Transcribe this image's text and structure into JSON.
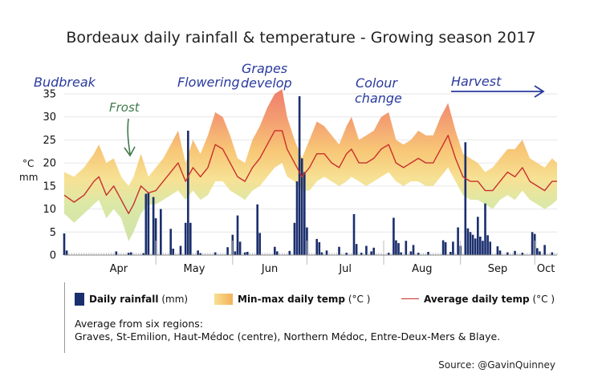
{
  "chart_data": {
    "type": "bar+band+line",
    "title": "Bordeaux daily rainfall & temperature - Growing season 2017",
    "y_unit_top": "°C",
    "y_unit_bottom": "mm",
    "ylim": [
      0,
      35
    ],
    "y_ticks": [
      0,
      5,
      10,
      15,
      20,
      25,
      30,
      35
    ],
    "x_range_days": [
      "2017-03-25",
      "2017-10-10"
    ],
    "month_labels": [
      "Apr",
      "May",
      "Jun",
      "Jul",
      "Aug",
      "Sep",
      "Oct"
    ],
    "month_boundaries": [
      "2017-05-01",
      "2017-06-01",
      "2017-07-01",
      "2017-08-01",
      "2017-09-01",
      "2017-10-01"
    ],
    "series": [
      {
        "name": "Daily rainfall",
        "unit": "(mm)",
        "type": "bar",
        "color": "#1b2f6e"
      },
      {
        "name": "Min-max daily temp",
        "unit": "(°C )",
        "type": "band",
        "color": "#f5b15a"
      },
      {
        "name": "Average daily temp",
        "unit": "(°C )",
        "type": "line",
        "color": "#c9302c"
      }
    ],
    "rainfall_mm": [
      {
        "date": "2017-03-25",
        "v": 4.7
      },
      {
        "date": "2017-03-26",
        "v": 1.0
      },
      {
        "date": "2017-04-15",
        "v": 0.8
      },
      {
        "date": "2017-04-20",
        "v": 0.5
      },
      {
        "date": "2017-04-21",
        "v": 0.6
      },
      {
        "date": "2017-04-26",
        "v": 0.4
      },
      {
        "date": "2017-04-27",
        "v": 13.3
      },
      {
        "date": "2017-04-28",
        "v": 13.5
      },
      {
        "date": "2017-04-30",
        "v": 12.6
      },
      {
        "date": "2017-05-01",
        "v": 8.0
      },
      {
        "date": "2017-05-03",
        "v": 10.0
      },
      {
        "date": "2017-05-07",
        "v": 5.7
      },
      {
        "date": "2017-05-08",
        "v": 1.4
      },
      {
        "date": "2017-05-11",
        "v": 2.0
      },
      {
        "date": "2017-05-13",
        "v": 7.0
      },
      {
        "date": "2017-05-14",
        "v": 27.0
      },
      {
        "date": "2017-05-15",
        "v": 7.0
      },
      {
        "date": "2017-05-18",
        "v": 1.0
      },
      {
        "date": "2017-05-19",
        "v": 0.4
      },
      {
        "date": "2017-05-25",
        "v": 0.6
      },
      {
        "date": "2017-05-30",
        "v": 1.7
      },
      {
        "date": "2017-06-01",
        "v": 4.4
      },
      {
        "date": "2017-06-02",
        "v": 0.8
      },
      {
        "date": "2017-06-03",
        "v": 8.6
      },
      {
        "date": "2017-06-04",
        "v": 2.9
      },
      {
        "date": "2017-06-06",
        "v": 0.6
      },
      {
        "date": "2017-06-07",
        "v": 0.7
      },
      {
        "date": "2017-06-11",
        "v": 11.0
      },
      {
        "date": "2017-06-12",
        "v": 4.8
      },
      {
        "date": "2017-06-18",
        "v": 1.8
      },
      {
        "date": "2017-06-19",
        "v": 0.8
      },
      {
        "date": "2017-06-24",
        "v": 0.9
      },
      {
        "date": "2017-06-26",
        "v": 7.0
      },
      {
        "date": "2017-06-27",
        "v": 16.0
      },
      {
        "date": "2017-06-28",
        "v": 34.5
      },
      {
        "date": "2017-06-29",
        "v": 21.0
      },
      {
        "date": "2017-06-30",
        "v": 18.0
      },
      {
        "date": "2017-07-01",
        "v": 6.0
      },
      {
        "date": "2017-07-05",
        "v": 3.5
      },
      {
        "date": "2017-07-06",
        "v": 2.8
      },
      {
        "date": "2017-07-07",
        "v": 0.6
      },
      {
        "date": "2017-07-09",
        "v": 1.0
      },
      {
        "date": "2017-07-14",
        "v": 1.8
      },
      {
        "date": "2017-07-17",
        "v": 0.5
      },
      {
        "date": "2017-07-20",
        "v": 8.9
      },
      {
        "date": "2017-07-21",
        "v": 2.4
      },
      {
        "date": "2017-07-23",
        "v": 0.5
      },
      {
        "date": "2017-07-25",
        "v": 2.0
      },
      {
        "date": "2017-07-27",
        "v": 0.8
      },
      {
        "date": "2017-07-28",
        "v": 1.6
      },
      {
        "date": "2017-08-03",
        "v": 0.5
      },
      {
        "date": "2017-08-05",
        "v": 8.1
      },
      {
        "date": "2017-08-06",
        "v": 3.2
      },
      {
        "date": "2017-08-07",
        "v": 2.6
      },
      {
        "date": "2017-08-08",
        "v": 0.6
      },
      {
        "date": "2017-08-10",
        "v": 3.1
      },
      {
        "date": "2017-08-12",
        "v": 0.8
      },
      {
        "date": "2017-08-13",
        "v": 2.2
      },
      {
        "date": "2017-08-15",
        "v": 0.5
      },
      {
        "date": "2017-08-19",
        "v": 0.7
      },
      {
        "date": "2017-08-25",
        "v": 3.2
      },
      {
        "date": "2017-08-26",
        "v": 2.8
      },
      {
        "date": "2017-08-28",
        "v": 0.7
      },
      {
        "date": "2017-08-29",
        "v": 2.9
      },
      {
        "date": "2017-08-31",
        "v": 6.0
      },
      {
        "date": "2017-09-01",
        "v": 2.0
      },
      {
        "date": "2017-09-03",
        "v": 24.5
      },
      {
        "date": "2017-09-04",
        "v": 5.8
      },
      {
        "date": "2017-09-05",
        "v": 5.0
      },
      {
        "date": "2017-09-06",
        "v": 4.4
      },
      {
        "date": "2017-09-07",
        "v": 3.6
      },
      {
        "date": "2017-09-08",
        "v": 8.3
      },
      {
        "date": "2017-09-09",
        "v": 4.0
      },
      {
        "date": "2017-09-10",
        "v": 3.1
      },
      {
        "date": "2017-09-11",
        "v": 11.2
      },
      {
        "date": "2017-09-12",
        "v": 4.3
      },
      {
        "date": "2017-09-13",
        "v": 2.9
      },
      {
        "date": "2017-09-16",
        "v": 1.9
      },
      {
        "date": "2017-09-17",
        "v": 1.0
      },
      {
        "date": "2017-09-20",
        "v": 0.6
      },
      {
        "date": "2017-09-23",
        "v": 0.9
      },
      {
        "date": "2017-09-26",
        "v": 0.5
      },
      {
        "date": "2017-09-30",
        "v": 5.0
      },
      {
        "date": "2017-10-01",
        "v": 4.6
      },
      {
        "date": "2017-10-02",
        "v": 1.5
      },
      {
        "date": "2017-10-03",
        "v": 0.8
      },
      {
        "date": "2017-10-05",
        "v": 2.2
      },
      {
        "date": "2017-10-08",
        "v": 0.6
      }
    ],
    "temp_daily": [
      {
        "date": "2017-03-25",
        "min": 9,
        "avg": 13,
        "max": 18
      },
      {
        "date": "2017-03-29",
        "min": 7,
        "avg": 11.5,
        "max": 17
      },
      {
        "date": "2017-04-02",
        "min": 9,
        "avg": 13,
        "max": 19
      },
      {
        "date": "2017-04-06",
        "min": 11,
        "avg": 16,
        "max": 22
      },
      {
        "date": "2017-04-08",
        "min": 12,
        "avg": 17,
        "max": 24
      },
      {
        "date": "2017-04-11",
        "min": 8,
        "avg": 13,
        "max": 20
      },
      {
        "date": "2017-04-14",
        "min": 10,
        "avg": 15,
        "max": 21
      },
      {
        "date": "2017-04-17",
        "min": 8,
        "avg": 12,
        "max": 17
      },
      {
        "date": "2017-04-20",
        "min": 3,
        "avg": 9,
        "max": 15
      },
      {
        "date": "2017-04-22",
        "min": 5,
        "avg": 11,
        "max": 17
      },
      {
        "date": "2017-04-25",
        "min": 9,
        "avg": 15,
        "max": 22
      },
      {
        "date": "2017-04-28",
        "min": 11,
        "avg": 13.5,
        "max": 17
      },
      {
        "date": "2017-05-01",
        "min": 11,
        "avg": 14,
        "max": 19
      },
      {
        "date": "2017-05-04",
        "min": 12,
        "avg": 16,
        "max": 21
      },
      {
        "date": "2017-05-07",
        "min": 13,
        "avg": 18,
        "max": 24
      },
      {
        "date": "2017-05-10",
        "min": 14,
        "avg": 20,
        "max": 27
      },
      {
        "date": "2017-05-13",
        "min": 12,
        "avg": 16,
        "max": 20
      },
      {
        "date": "2017-05-16",
        "min": 14,
        "avg": 19,
        "max": 25
      },
      {
        "date": "2017-05-19",
        "min": 12,
        "avg": 17,
        "max": 22
      },
      {
        "date": "2017-05-22",
        "min": 13,
        "avg": 19,
        "max": 26
      },
      {
        "date": "2017-05-25",
        "min": 16,
        "avg": 24,
        "max": 31
      },
      {
        "date": "2017-05-28",
        "min": 16,
        "avg": 23,
        "max": 30
      },
      {
        "date": "2017-05-31",
        "min": 14,
        "avg": 20,
        "max": 26
      },
      {
        "date": "2017-06-03",
        "min": 13,
        "avg": 17,
        "max": 21
      },
      {
        "date": "2017-06-06",
        "min": 12,
        "avg": 16,
        "max": 20
      },
      {
        "date": "2017-06-09",
        "min": 14,
        "avg": 19,
        "max": 25
      },
      {
        "date": "2017-06-12",
        "min": 15,
        "avg": 21,
        "max": 28
      },
      {
        "date": "2017-06-15",
        "min": 17,
        "avg": 24,
        "max": 32
      },
      {
        "date": "2017-06-18",
        "min": 19,
        "avg": 27,
        "max": 35
      },
      {
        "date": "2017-06-21",
        "min": 20,
        "avg": 27,
        "max": 36
      },
      {
        "date": "2017-06-23",
        "min": 17,
        "avg": 23,
        "max": 30
      },
      {
        "date": "2017-06-26",
        "min": 16,
        "avg": 20,
        "max": 25
      },
      {
        "date": "2017-06-29",
        "min": 14,
        "avg": 17,
        "max": 21
      },
      {
        "date": "2017-07-02",
        "min": 14,
        "avg": 19,
        "max": 25
      },
      {
        "date": "2017-07-05",
        "min": 16,
        "avg": 22,
        "max": 29
      },
      {
        "date": "2017-07-08",
        "min": 17,
        "avg": 22,
        "max": 28
      },
      {
        "date": "2017-07-11",
        "min": 16,
        "avg": 20,
        "max": 26
      },
      {
        "date": "2017-07-14",
        "min": 15,
        "avg": 19,
        "max": 24
      },
      {
        "date": "2017-07-17",
        "min": 16,
        "avg": 22,
        "max": 28
      },
      {
        "date": "2017-07-19",
        "min": 17,
        "avg": 23,
        "max": 30
      },
      {
        "date": "2017-07-22",
        "min": 16,
        "avg": 20,
        "max": 25
      },
      {
        "date": "2017-07-25",
        "min": 15,
        "avg": 20,
        "max": 26
      },
      {
        "date": "2017-07-28",
        "min": 16,
        "avg": 21,
        "max": 27
      },
      {
        "date": "2017-07-31",
        "min": 17,
        "avg": 23,
        "max": 30
      },
      {
        "date": "2017-08-03",
        "min": 18,
        "avg": 24,
        "max": 31
      },
      {
        "date": "2017-08-06",
        "min": 16,
        "avg": 20,
        "max": 25
      },
      {
        "date": "2017-08-09",
        "min": 15,
        "avg": 19,
        "max": 24
      },
      {
        "date": "2017-08-12",
        "min": 16,
        "avg": 20,
        "max": 25
      },
      {
        "date": "2017-08-15",
        "min": 16,
        "avg": 21,
        "max": 27
      },
      {
        "date": "2017-08-18",
        "min": 15,
        "avg": 20,
        "max": 26
      },
      {
        "date": "2017-08-21",
        "min": 15,
        "avg": 20,
        "max": 26
      },
      {
        "date": "2017-08-24",
        "min": 17,
        "avg": 23,
        "max": 30
      },
      {
        "date": "2017-08-27",
        "min": 19,
        "avg": 26,
        "max": 33
      },
      {
        "date": "2017-08-30",
        "min": 16,
        "avg": 21,
        "max": 27
      },
      {
        "date": "2017-09-02",
        "min": 13,
        "avg": 17,
        "max": 22
      },
      {
        "date": "2017-09-05",
        "min": 12,
        "avg": 16,
        "max": 21
      },
      {
        "date": "2017-09-08",
        "min": 12,
        "avg": 16,
        "max": 20
      },
      {
        "date": "2017-09-11",
        "min": 11,
        "avg": 14,
        "max": 18
      },
      {
        "date": "2017-09-14",
        "min": 10,
        "avg": 14,
        "max": 19
      },
      {
        "date": "2017-09-17",
        "min": 12,
        "avg": 16,
        "max": 21
      },
      {
        "date": "2017-09-20",
        "min": 13,
        "avg": 18,
        "max": 23
      },
      {
        "date": "2017-09-23",
        "min": 12,
        "avg": 17,
        "max": 23
      },
      {
        "date": "2017-09-26",
        "min": 14,
        "avg": 19,
        "max": 25
      },
      {
        "date": "2017-09-29",
        "min": 12,
        "avg": 16,
        "max": 21
      },
      {
        "date": "2017-10-02",
        "min": 11,
        "avg": 15,
        "max": 20
      },
      {
        "date": "2017-10-05",
        "min": 10,
        "avg": 14,
        "max": 19
      },
      {
        "date": "2017-10-08",
        "min": 11,
        "avg": 16,
        "max": 21
      },
      {
        "date": "2017-10-10",
        "min": 12,
        "avg": 16,
        "max": 20
      }
    ],
    "annotations": [
      {
        "text": "Budbreak",
        "date": "2017-04-01"
      },
      {
        "text": "Frost",
        "date": "2017-04-20"
      },
      {
        "text": "Flowering",
        "date": "2017-05-25"
      },
      {
        "text": "Grapes develop",
        "date": "2017-06-20"
      },
      {
        "text": "Colour change",
        "date": "2017-07-28"
      },
      {
        "text": "Harvest",
        "date": "2017-09-05"
      }
    ]
  },
  "legend": {
    "rain_label": "Daily rainfall",
    "rain_unit": "(mm)",
    "temp_label": "Min-max daily temp",
    "temp_unit": "(°C )",
    "avg_label": "Average daily temp",
    "avg_unit": "(°C )"
  },
  "note": {
    "line1": "Average from six regions:",
    "line2": "Graves, St-Emilion, Haut-Médoc (centre), Northern Médoc, Entre-Deux-Mers & Blaye."
  },
  "source": "Source: @GavinQuinney",
  "colors": {
    "rain": "#1b2f6e",
    "band_low": "#c9e0a5",
    "band_mid": "#f6e08f",
    "band_high": "#f2896a",
    "avg_line": "#c9302c",
    "annotation_blue": "#2a3a9e",
    "annotation_green": "#3f7a4a"
  }
}
